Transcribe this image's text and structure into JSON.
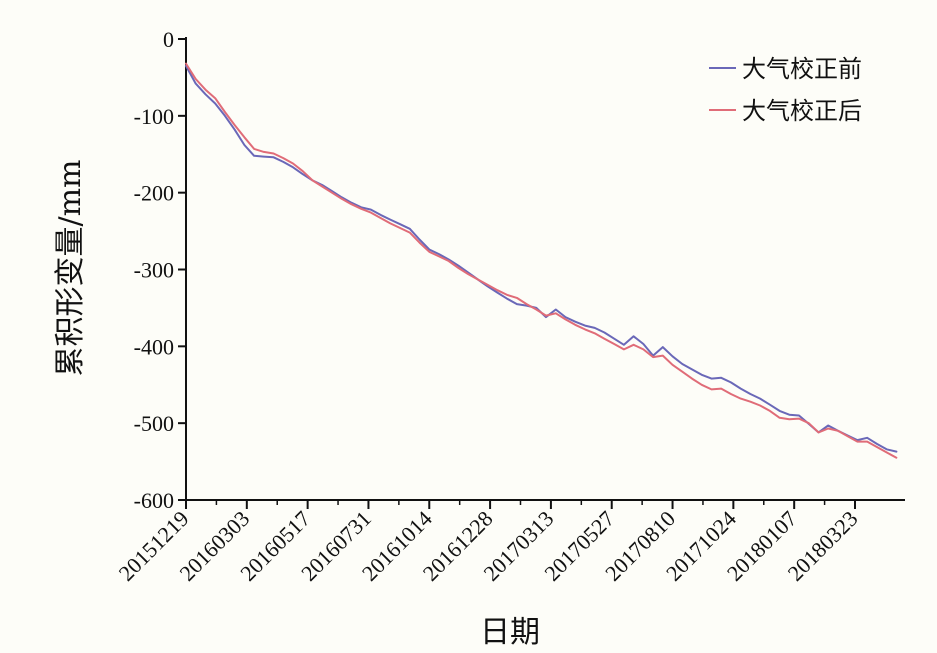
{
  "chart_data": {
    "type": "line",
    "ylabel": "累积形变量/mm",
    "xlabel": "日期",
    "ylim": [
      -600,
      0
    ],
    "yticks": [
      0,
      -100,
      -200,
      -300,
      -400,
      -500,
      -600
    ],
    "ytick_labels": [
      "0",
      "-100",
      "-200",
      "-300",
      "-400",
      "-500",
      "-600"
    ],
    "x_ticks": [
      "20151219",
      "20160303",
      "20160517",
      "20160731",
      "20161014",
      "20161228",
      "20170313",
      "20170527",
      "20170810",
      "20171024",
      "20180107",
      "20180323"
    ],
    "legend_position": "top-right",
    "grid": false,
    "series": [
      {
        "name": "大气校正前",
        "color": "#6a68b8",
        "points": [
          [
            "20151219",
            -35
          ],
          [
            "20151231",
            -58
          ],
          [
            "20160112",
            -72
          ],
          [
            "20160124",
            -84
          ],
          [
            "20160205",
            -100
          ],
          [
            "20160217",
            -118
          ],
          [
            "20160229",
            -138
          ],
          [
            "20160312",
            -152
          ],
          [
            "20160324",
            -153
          ],
          [
            "20160405",
            -154
          ],
          [
            "20160417",
            -160
          ],
          [
            "20160429",
            -167
          ],
          [
            "20160511",
            -176
          ],
          [
            "20160523",
            -184
          ],
          [
            "20160604",
            -190
          ],
          [
            "20160616",
            -198
          ],
          [
            "20160628",
            -206
          ],
          [
            "20160710",
            -213
          ],
          [
            "20160722",
            -219
          ],
          [
            "20160803",
            -222
          ],
          [
            "20160815",
            -229
          ],
          [
            "20160827",
            -235
          ],
          [
            "20160908",
            -241
          ],
          [
            "20160920",
            -247
          ],
          [
            "20161002",
            -261
          ],
          [
            "20161014",
            -274
          ],
          [
            "20161026",
            -280
          ],
          [
            "20161107",
            -287
          ],
          [
            "20161119",
            -295
          ],
          [
            "20161201",
            -304
          ],
          [
            "20161213",
            -313
          ],
          [
            "20161225",
            -322
          ],
          [
            "20170106",
            -330
          ],
          [
            "20170118",
            -338
          ],
          [
            "20170130",
            -345
          ],
          [
            "20170211",
            -347
          ],
          [
            "20170223",
            -350
          ],
          [
            "20170307",
            -362
          ],
          [
            "20170319",
            -352
          ],
          [
            "20170331",
            -362
          ],
          [
            "20170412",
            -368
          ],
          [
            "20170424",
            -373
          ],
          [
            "20170506",
            -376
          ],
          [
            "20170518",
            -382
          ],
          [
            "20170530",
            -390
          ],
          [
            "20170611",
            -398
          ],
          [
            "20170623",
            -387
          ],
          [
            "20170705",
            -397
          ],
          [
            "20170717",
            -412
          ],
          [
            "20170729",
            -401
          ],
          [
            "20170810",
            -413
          ],
          [
            "20170822",
            -423
          ],
          [
            "20170903",
            -430
          ],
          [
            "20170915",
            -437
          ],
          [
            "20170927",
            -442
          ],
          [
            "20171009",
            -441
          ],
          [
            "20171021",
            -447
          ],
          [
            "20171102",
            -455
          ],
          [
            "20171114",
            -462
          ],
          [
            "20171126",
            -468
          ],
          [
            "20171208",
            -476
          ],
          [
            "20171220",
            -484
          ],
          [
            "20180101",
            -489
          ],
          [
            "20180113",
            -490
          ],
          [
            "20180125",
            -501
          ],
          [
            "20180206",
            -512
          ],
          [
            "20180218",
            -503
          ],
          [
            "20180302",
            -510
          ],
          [
            "20180314",
            -516
          ],
          [
            "20180326",
            -522
          ],
          [
            "20180407",
            -519
          ],
          [
            "20180419",
            -527
          ],
          [
            "20180501",
            -534
          ],
          [
            "20180513",
            -537
          ]
        ]
      },
      {
        "name": "大气校正后",
        "color": "#e06c78",
        "points": [
          [
            "20151219",
            -32
          ],
          [
            "20151231",
            -52
          ],
          [
            "20160112",
            -66
          ],
          [
            "20160124",
            -77
          ],
          [
            "20160205",
            -95
          ],
          [
            "20160217",
            -112
          ],
          [
            "20160229",
            -128
          ],
          [
            "20160312",
            -143
          ],
          [
            "20160324",
            -147
          ],
          [
            "20160405",
            -149
          ],
          [
            "20160417",
            -155
          ],
          [
            "20160429",
            -162
          ],
          [
            "20160511",
            -172
          ],
          [
            "20160523",
            -184
          ],
          [
            "20160604",
            -192
          ],
          [
            "20160616",
            -200
          ],
          [
            "20160628",
            -208
          ],
          [
            "20160710",
            -215
          ],
          [
            "20160722",
            -221
          ],
          [
            "20160803",
            -226
          ],
          [
            "20160815",
            -233
          ],
          [
            "20160827",
            -240
          ],
          [
            "20160908",
            -246
          ],
          [
            "20160920",
            -252
          ],
          [
            "20161002",
            -265
          ],
          [
            "20161014",
            -277
          ],
          [
            "20161026",
            -283
          ],
          [
            "20161107",
            -289
          ],
          [
            "20161119",
            -298
          ],
          [
            "20161201",
            -306
          ],
          [
            "20161213",
            -313
          ],
          [
            "20161225",
            -320
          ],
          [
            "20170106",
            -327
          ],
          [
            "20170118",
            -333
          ],
          [
            "20170130",
            -337
          ],
          [
            "20170211",
            -345
          ],
          [
            "20170223",
            -352
          ],
          [
            "20170307",
            -360
          ],
          [
            "20170319",
            -357
          ],
          [
            "20170331",
            -365
          ],
          [
            "20170412",
            -372
          ],
          [
            "20170424",
            -378
          ],
          [
            "20170506",
            -383
          ],
          [
            "20170518",
            -390
          ],
          [
            "20170530",
            -397
          ],
          [
            "20170611",
            -404
          ],
          [
            "20170623",
            -398
          ],
          [
            "20170705",
            -404
          ],
          [
            "20170717",
            -414
          ],
          [
            "20170729",
            -412
          ],
          [
            "20170810",
            -424
          ],
          [
            "20170822",
            -433
          ],
          [
            "20170903",
            -442
          ],
          [
            "20170915",
            -450
          ],
          [
            "20170927",
            -456
          ],
          [
            "20171009",
            -455
          ],
          [
            "20171021",
            -462
          ],
          [
            "20171102",
            -468
          ],
          [
            "20171114",
            -472
          ],
          [
            "20171126",
            -477
          ],
          [
            "20171208",
            -484
          ],
          [
            "20171220",
            -493
          ],
          [
            "20180101",
            -495
          ],
          [
            "20180113",
            -494
          ],
          [
            "20180125",
            -500
          ],
          [
            "20180206",
            -512
          ],
          [
            "20180218",
            -507
          ],
          [
            "20180302",
            -510
          ],
          [
            "20180314",
            -517
          ],
          [
            "20180326",
            -524
          ],
          [
            "20180407",
            -524
          ],
          [
            "20180419",
            -531
          ],
          [
            "20180501",
            -538
          ],
          [
            "20180513",
            -545
          ]
        ]
      }
    ]
  }
}
